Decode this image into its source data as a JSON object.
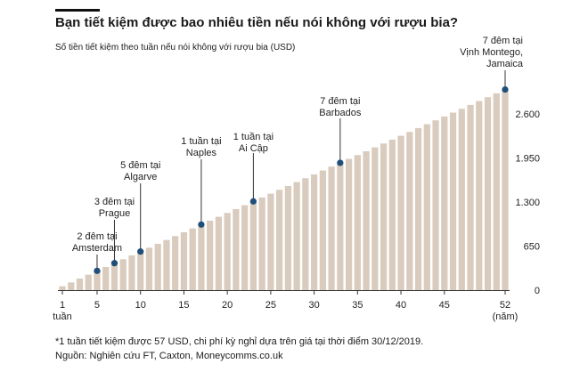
{
  "title": "Bạn tiết kiệm được bao nhiêu tiền nếu nói không với rượu bia?",
  "subtitle": "Số tiền tiết kiệm theo tuần nếu nói không với rượu bia (USD)",
  "footnote": "*1 tuần tiết kiệm được  57 USD, chi phí kỳ nghỉ dựa trên giá tại thời điểm 30/12/2019.",
  "source": "Nguồn: Nghiên cứu FT, Caxton, Moneycomms.co.uk",
  "colors": {
    "bar": "#d9cbbd",
    "marker": "#1f4e7a",
    "axis": "#333333"
  },
  "chart_data": {
    "type": "bar",
    "x": [
      1,
      2,
      3,
      4,
      5,
      6,
      7,
      8,
      9,
      10,
      11,
      12,
      13,
      14,
      15,
      16,
      17,
      18,
      19,
      20,
      21,
      22,
      23,
      24,
      25,
      26,
      27,
      28,
      29,
      30,
      31,
      32,
      33,
      34,
      35,
      36,
      37,
      38,
      39,
      40,
      41,
      42,
      43,
      44,
      45,
      46,
      47,
      48,
      49,
      50,
      51,
      52
    ],
    "values": [
      57,
      114,
      171,
      228,
      285,
      342,
      399,
      456,
      513,
      570,
      627,
      684,
      741,
      798,
      855,
      912,
      969,
      1026,
      1083,
      1140,
      1197,
      1254,
      1311,
      1368,
      1425,
      1482,
      1539,
      1596,
      1653,
      1710,
      1767,
      1824,
      1881,
      1938,
      1995,
      2052,
      2109,
      2166,
      2223,
      2280,
      2337,
      2394,
      2451,
      2508,
      2565,
      2622,
      2679,
      2736,
      2793,
      2850,
      2907,
      2964
    ],
    "ylim": [
      0,
      3050
    ],
    "yticks": [
      0,
      650,
      1300,
      1950,
      2600
    ],
    "ytick_labels": [
      "0",
      "650",
      "1.300",
      "1.950",
      "2.600"
    ],
    "xticks": [
      1,
      5,
      10,
      15,
      20,
      25,
      30,
      35,
      40,
      45,
      52
    ],
    "xtick_labels": [
      "1",
      "5",
      "10",
      "15",
      "20",
      "25",
      "30",
      "35",
      "40",
      "45",
      "52"
    ],
    "xlabel_first": "tuần",
    "xlabel_last": "(năm)",
    "annotations": [
      {
        "week": 5,
        "value": 285,
        "lines": [
          "2 đêm tại",
          "Amsterdam"
        ]
      },
      {
        "week": 7,
        "value": 399,
        "lines": [
          "3 đêm tại",
          "Prague"
        ]
      },
      {
        "week": 10,
        "value": 570,
        "lines": [
          "5 đêm tại",
          "Algarve"
        ]
      },
      {
        "week": 17,
        "value": 969,
        "lines": [
          "1 tuần tại",
          "Naples"
        ]
      },
      {
        "week": 23,
        "value": 1311,
        "lines": [
          "1 tuần tại",
          "Ai Cập"
        ]
      },
      {
        "week": 33,
        "value": 1881,
        "lines": [
          "7 đêm tại",
          "Barbados"
        ]
      },
      {
        "week": 52,
        "value": 2964,
        "lines": [
          "7 đêm tại",
          "Vịnh Montego,",
          "Jamaica"
        ]
      }
    ]
  }
}
